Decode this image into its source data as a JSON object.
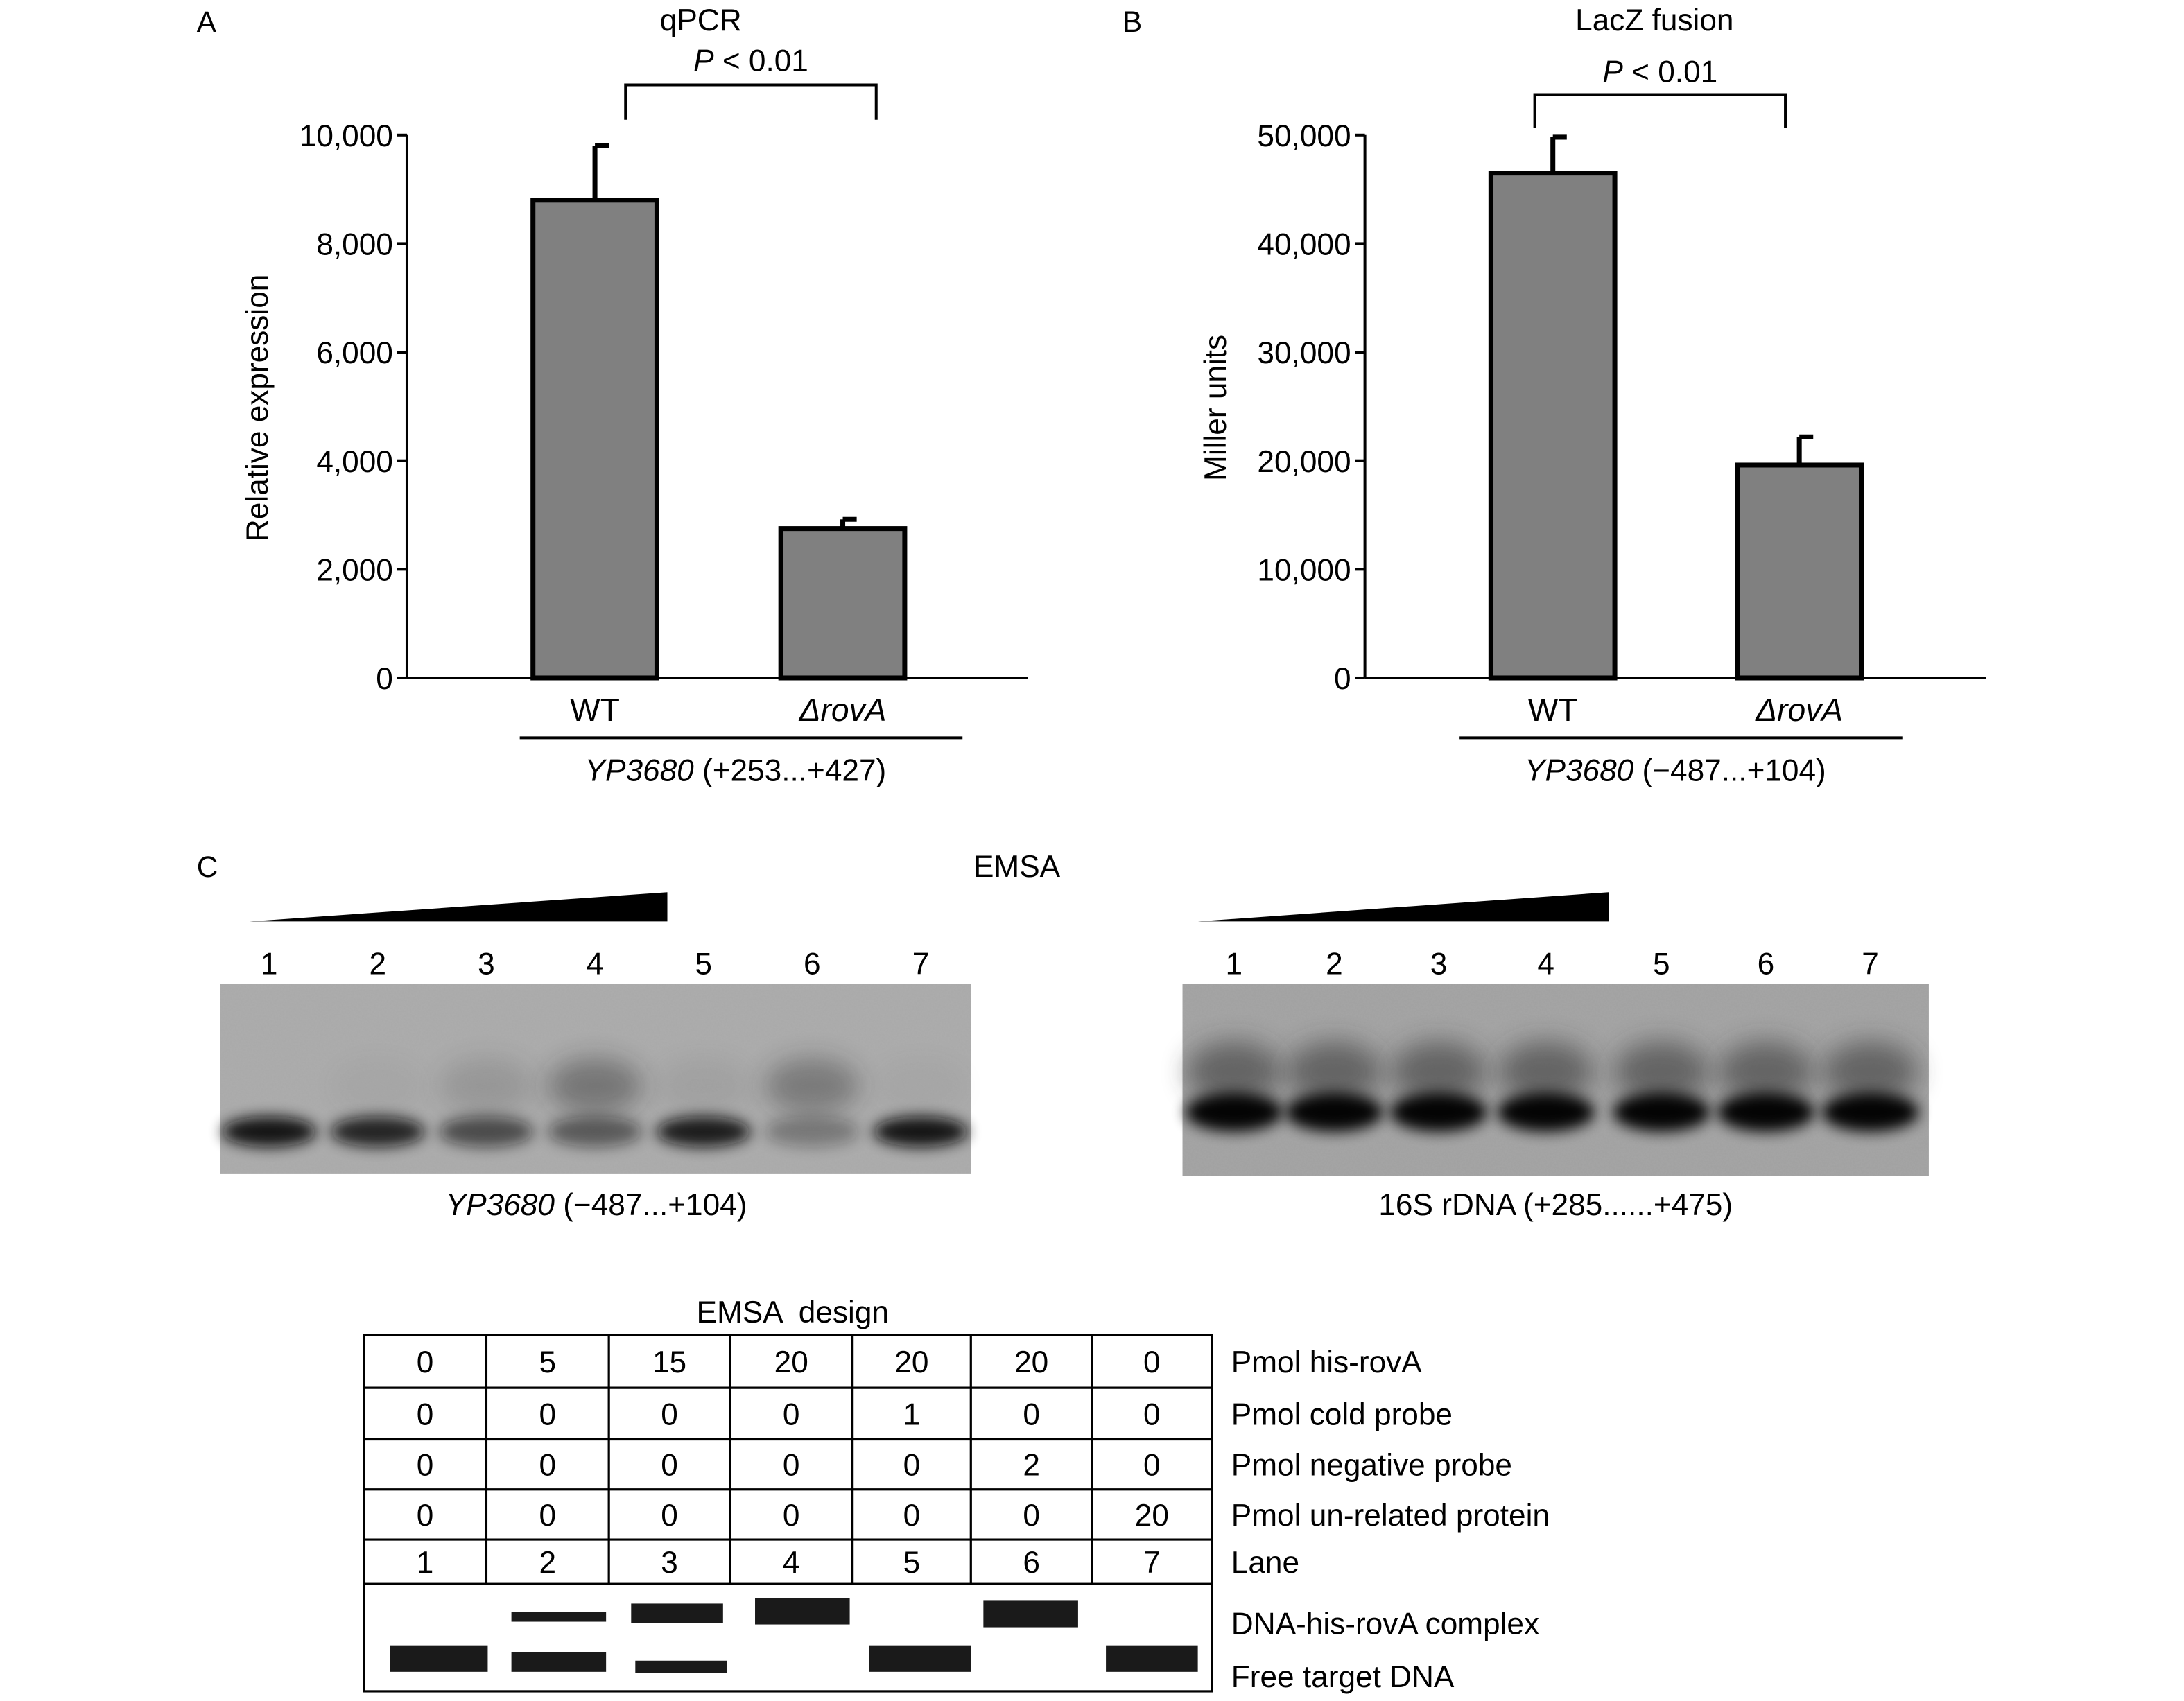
{
  "panel_a": {
    "letter": "A",
    "title": "qPCR",
    "p_label": "P",
    "p_value": "< 0.01",
    "ylabel": "Relative expression",
    "group_italic": "YP3680",
    "group_rest": " (+253...+427)"
  },
  "panel_b": {
    "letter": "B",
    "title": "LacZ fusion",
    "p_label": "P",
    "p_value": "< 0.01",
    "ylabel": "Miller units",
    "group_italic": "YP3680",
    "group_rest": " (−487...+104)"
  },
  "chart_data": [
    {
      "type": "bar",
      "title": "qPCR",
      "ylabel": "Relative expression",
      "categories": [
        "WT",
        "ΔrovA"
      ],
      "values": [
        8800,
        2750
      ],
      "errors": [
        1000,
        170
      ],
      "ylim": [
        0,
        10000
      ],
      "yticks": [
        0,
        2000,
        4000,
        6000,
        8000,
        10000
      ],
      "yticklabels": [
        "0",
        "2,000",
        "4,000",
        "6,000",
        "8,000",
        "10,000"
      ],
      "bar_color": "#808080",
      "grid": false
    },
    {
      "type": "bar",
      "title": "LacZ fusion",
      "ylabel": "Miller units",
      "categories": [
        "WT",
        "ΔrovA"
      ],
      "values": [
        46500,
        19600
      ],
      "errors": [
        3300,
        2600
      ],
      "ylim": [
        0,
        50000
      ],
      "yticks": [
        0,
        10000,
        20000,
        30000,
        40000,
        50000
      ],
      "yticklabels": [
        "0",
        "10,000",
        "20,000",
        "30,000",
        "40,000",
        "50,000"
      ],
      "bar_color": "#808080",
      "grid": false
    }
  ],
  "panel_c": {
    "letter": "C",
    "title": "EMSA",
    "left_gel": {
      "lanes": [
        "1",
        "2",
        "3",
        "4",
        "5",
        "6",
        "7"
      ],
      "caption_italic": "YP3680",
      "caption_rest": " (−487...+104)"
    },
    "right_gel": {
      "lanes": [
        "1",
        "2",
        "3",
        "4",
        "5",
        "6",
        "7"
      ],
      "caption": "16S rDNA (+285......+475)"
    }
  },
  "design": {
    "title": "EMSA  design",
    "rows": [
      {
        "label": "Pmol his-rovA",
        "values": [
          "0",
          "5",
          "15",
          "20",
          "20",
          "20",
          "0"
        ]
      },
      {
        "label": "Pmol cold probe",
        "values": [
          "0",
          "0",
          "0",
          "0",
          "1",
          "0",
          "0"
        ]
      },
      {
        "label": "Pmol negative probe",
        "values": [
          "0",
          "0",
          "0",
          "0",
          "0",
          "2",
          "0"
        ]
      },
      {
        "label": "Pmol un-related protein",
        "values": [
          "0",
          "0",
          "0",
          "0",
          "0",
          "0",
          "20"
        ]
      },
      {
        "label": "Lane",
        "values": [
          "1",
          "2",
          "3",
          "4",
          "5",
          "6",
          "7"
        ]
      }
    ],
    "band_labels": [
      "DNA-his-rovA complex",
      "Free target DNA"
    ]
  }
}
